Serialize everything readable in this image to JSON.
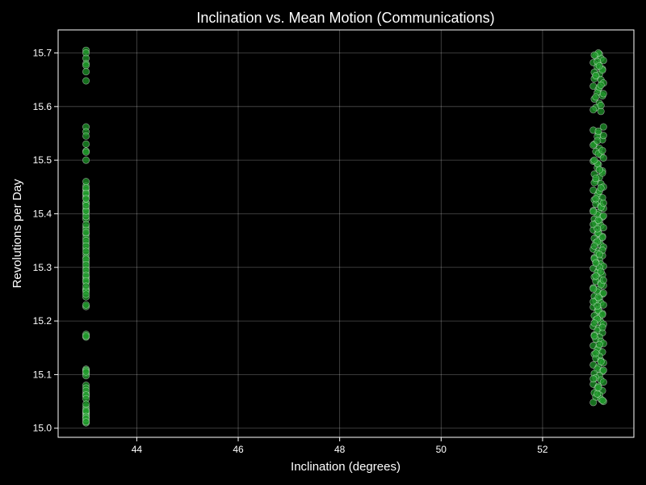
{
  "chart_data": {
    "type": "scatter",
    "title": "Inclination vs. Mean Motion (Communications)",
    "xlabel": "Inclination (degrees)",
    "ylabel": "Revolutions per Day",
    "xlim": [
      42.45,
      53.8
    ],
    "ylim": [
      14.983,
      15.743
    ],
    "xticks": [
      44,
      46,
      48,
      50,
      52
    ],
    "yticks": [
      15.0,
      15.1,
      15.2,
      15.3,
      15.4,
      15.5,
      15.6,
      15.7
    ],
    "grid": true,
    "colors": {
      "background": "#000000",
      "marker_fill": "#1f9a2a",
      "marker_edge": "#ffffff",
      "text": "#ffffff"
    },
    "series": [
      {
        "x": [
          43.0,
          43.0,
          43.0,
          43.0,
          43.0,
          43.0,
          43.0,
          43.0,
          43.0,
          43.0,
          43.0,
          43.0,
          43.0,
          43.0,
          43.0,
          43.0,
          43.0,
          43.0,
          43.0,
          43.0,
          43.0,
          43.0,
          43.0,
          43.0,
          43.0,
          43.0,
          43.0,
          43.0,
          43.0,
          43.0,
          43.0,
          43.0,
          43.0,
          43.0,
          43.0,
          43.0,
          43.0,
          43.0,
          43.0,
          43.0,
          43.0,
          43.0,
          43.0,
          43.0,
          43.0,
          43.0,
          43.0,
          43.0,
          43.0,
          43.0,
          43.0,
          43.0,
          43.0,
          43.0,
          43.0,
          43.0,
          43.0,
          43.0,
          43.0,
          43.0,
          43.0,
          43.0,
          43.0,
          43.0,
          43.0,
          43.0,
          43.0,
          43.0,
          43.0,
          43.0,
          43.0,
          43.0,
          43.0,
          43.0,
          43.0,
          43.0,
          43.0,
          43.0,
          43.0,
          43.0,
          43.0,
          43.0,
          43.0,
          43.0,
          43.0,
          43.0,
          43.0,
          43.0,
          43.0,
          43.0,
          43.0,
          43.0
        ],
        "y": [
          15.705,
          15.7,
          15.69,
          15.68,
          15.677,
          15.665,
          15.648,
          15.562,
          15.553,
          15.545,
          15.53,
          15.517,
          15.515,
          15.5,
          15.452,
          15.445,
          15.44,
          15.435,
          15.43,
          15.42,
          15.41,
          15.405,
          15.4,
          15.39,
          15.375,
          15.37,
          15.362,
          15.355,
          15.345,
          15.335,
          15.325,
          15.318,
          15.31,
          15.3,
          15.29,
          15.282,
          15.278,
          15.272,
          15.26,
          15.258,
          15.255,
          15.245,
          15.227,
          15.175,
          15.17,
          15.11,
          15.102,
          15.098,
          15.08,
          15.075,
          15.065,
          15.06,
          15.04,
          15.035,
          15.028,
          15.025,
          15.02,
          15.015,
          15.03,
          15.01,
          15.42,
          15.395,
          15.405,
          15.38,
          15.365,
          15.35,
          15.34,
          15.33,
          15.315,
          15.305,
          15.295,
          15.285,
          15.275,
          15.265,
          15.25,
          15.23,
          15.172,
          15.108,
          15.105,
          15.07,
          15.062,
          15.055,
          15.045,
          15.032,
          15.022,
          15.018,
          15.012,
          15.46,
          15.448,
          15.438,
          15.428,
          15.415
        ]
      },
      {
        "x": [
          53.12,
          53.05,
          53.15,
          53.2,
          53.0,
          53.1,
          53.08,
          53.18,
          53.02,
          53.12,
          53.05,
          53.15,
          53.2,
          53.0,
          53.1,
          53.08,
          53.18,
          53.02,
          53.12,
          53.05,
          53.15,
          53.2,
          53.0,
          53.1,
          53.08,
          53.18,
          53.02,
          53.12,
          53.05,
          53.15,
          53.2,
          53.0,
          53.1,
          53.08,
          53.18,
          53.02,
          53.12,
          53.05,
          53.15,
          53.2,
          53.0,
          53.1,
          53.08,
          53.18,
          53.02,
          53.12,
          53.05,
          53.15,
          53.2,
          53.0,
          53.1,
          53.08,
          53.18,
          53.02,
          53.12,
          53.05,
          53.15,
          53.2,
          53.0,
          53.1,
          53.08,
          53.18,
          53.02,
          53.12,
          53.05,
          53.15,
          53.2,
          53.0,
          53.1,
          53.08,
          53.18,
          53.02,
          53.12,
          53.05,
          53.15,
          53.2,
          53.0,
          53.1,
          53.08,
          53.18,
          53.02,
          53.12,
          53.05,
          53.15,
          53.2,
          53.0,
          53.1,
          53.08,
          53.18,
          53.02,
          53.12,
          53.05,
          53.15,
          53.2,
          53.0,
          53.1,
          53.08,
          53.18,
          53.02,
          53.12,
          53.05,
          53.15,
          53.2,
          53.0,
          53.1,
          53.08,
          53.18,
          53.02,
          53.12,
          53.05,
          53.15,
          53.2,
          53.0,
          53.1,
          53.08,
          53.18,
          53.02,
          53.12,
          53.05,
          53.15,
          53.2,
          53.0,
          53.1,
          53.08,
          53.18,
          53.02,
          53.12,
          53.05,
          53.15,
          53.2,
          53.0,
          53.1,
          53.08,
          53.18,
          53.02,
          53.12,
          53.05,
          53.15,
          53.2,
          53.0,
          53.1,
          53.08,
          53.18,
          53.02,
          53.12,
          53.05,
          53.15,
          53.2,
          53.0,
          53.1,
          53.08,
          53.18,
          53.02,
          53.12,
          53.05,
          53.15,
          53.2,
          53.0,
          53.1,
          53.08,
          53.18,
          53.02,
          53.12,
          53.05,
          53.15,
          53.2,
          53.0,
          53.1,
          53.08,
          53.18,
          53.02,
          53.12,
          53.05,
          53.15,
          53.2,
          53.0,
          53.1,
          53.08,
          53.18,
          53.02,
          53.12,
          53.05,
          53.15,
          53.2,
          53.0,
          53.1,
          53.08,
          53.18,
          53.02,
          53.12,
          53.05,
          53.15,
          53.2,
          53.0,
          53.1,
          53.08,
          53.18,
          53.02,
          53.12,
          53.05,
          53.15,
          53.2,
          53.0,
          53.1,
          53.08,
          53.18,
          53.02
        ],
        "y": [
          15.698,
          15.694,
          15.69,
          15.686,
          15.682,
          15.678,
          15.674,
          15.67,
          15.664,
          15.66,
          15.656,
          15.65,
          15.644,
          15.638,
          15.632,
          15.626,
          15.62,
          15.614,
          15.606,
          15.598,
          15.591,
          15.562,
          15.556,
          15.55,
          15.544,
          15.538,
          15.53,
          15.522,
          15.516,
          15.51,
          15.504,
          15.498,
          15.492,
          15.486,
          15.48,
          15.474,
          15.468,
          15.462,
          15.456,
          15.45,
          15.444,
          15.438,
          15.434,
          15.43,
          15.426,
          15.422,
          15.418,
          15.414,
          15.41,
          15.406,
          15.402,
          15.398,
          15.394,
          15.39,
          15.386,
          15.382,
          15.378,
          15.374,
          15.37,
          15.366,
          15.362,
          15.358,
          15.354,
          15.35,
          15.346,
          15.342,
          15.338,
          15.334,
          15.33,
          15.326,
          15.322,
          15.318,
          15.314,
          15.31,
          15.306,
          15.302,
          15.298,
          15.294,
          15.29,
          15.286,
          15.282,
          15.278,
          15.274,
          15.27,
          15.266,
          15.262,
          15.258,
          15.254,
          15.25,
          15.246,
          15.242,
          15.238,
          15.234,
          15.23,
          15.226,
          15.222,
          15.218,
          15.214,
          15.21,
          15.206,
          15.202,
          15.198,
          15.194,
          15.19,
          15.186,
          15.182,
          15.178,
          15.174,
          15.17,
          15.166,
          15.162,
          15.158,
          15.154,
          15.15,
          15.146,
          15.142,
          15.138,
          15.134,
          15.13,
          15.126,
          15.122,
          15.118,
          15.114,
          15.11,
          15.106,
          15.102,
          15.098,
          15.094,
          15.09,
          15.086,
          15.082,
          15.078,
          15.074,
          15.07,
          15.066,
          15.062,
          15.058,
          15.054,
          15.05,
          15.048,
          15.7,
          15.684,
          15.668,
          15.652,
          15.636,
          15.618,
          15.602,
          15.546,
          15.528,
          15.512,
          15.494,
          15.476,
          15.458,
          15.442,
          15.428,
          15.412,
          15.396,
          15.38,
          15.364,
          15.348,
          15.332,
          15.316,
          15.3,
          15.284,
          15.268,
          15.252,
          15.236,
          15.22,
          15.204,
          15.188,
          15.172,
          15.156,
          15.14,
          15.124,
          15.108,
          15.092,
          15.076,
          15.064,
          15.052,
          15.696,
          15.676,
          15.658,
          15.64,
          15.624,
          15.594,
          15.554,
          15.536,
          15.518,
          15.5,
          15.482,
          15.466,
          15.448,
          15.42,
          15.404,
          15.388,
          15.372,
          15.356,
          15.34,
          15.324,
          15.308,
          15.292,
          15.276,
          15.26,
          15.244,
          15.228,
          15.212,
          15.196
        ]
      }
    ]
  }
}
